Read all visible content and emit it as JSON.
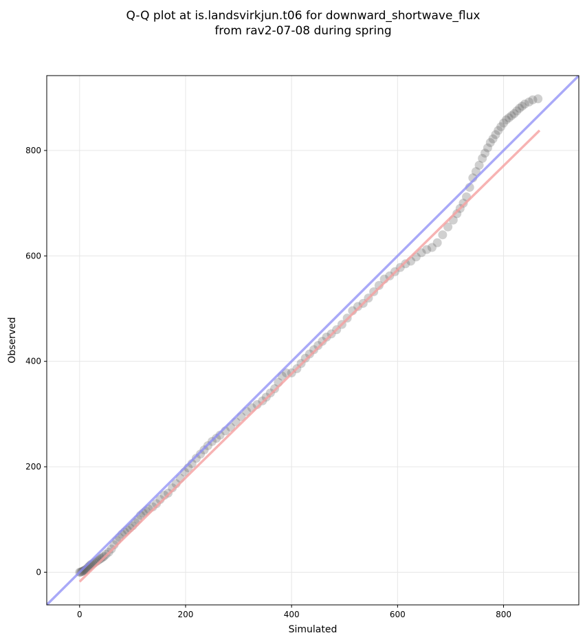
{
  "chart_data": {
    "type": "scatter",
    "title": "Q-Q plot at is.landsvirkjun.t06 for downward_shortwave_flux",
    "subtitle": "from rav2-07-08 during spring",
    "xlabel": "Simulated",
    "ylabel": "Observed",
    "xlim": [
      -62,
      942
    ],
    "ylim": [
      -62,
      942
    ],
    "xticks": [
      0,
      200,
      400,
      600,
      800
    ],
    "yticks": [
      0,
      200,
      400,
      600,
      800
    ],
    "grid": true,
    "point_color": "#555555",
    "identity_line_color": "#8c8cf5",
    "fit_line_color": "#f5a0a0",
    "identity_line": {
      "x": [
        -62,
        942
      ],
      "y": [
        -62,
        942
      ]
    },
    "fit_line": {
      "x": [
        0,
        868
      ],
      "y": [
        -18,
        838
      ]
    },
    "points": {
      "x": [
        0,
        2,
        4,
        6,
        8,
        10,
        12,
        14,
        16,
        18,
        20,
        22,
        25,
        28,
        31,
        34,
        37,
        40,
        43,
        46,
        50,
        55,
        60,
        65,
        70,
        75,
        80,
        85,
        90,
        95,
        100,
        105,
        110,
        115,
        120,
        125,
        130,
        138,
        145,
        152,
        160,
        167,
        175,
        182,
        190,
        198,
        205,
        212,
        220,
        228,
        235,
        242,
        250,
        258,
        265,
        275,
        285,
        295,
        305,
        315,
        325,
        335,
        345,
        352,
        360,
        368,
        375,
        382,
        390,
        400,
        410,
        418,
        426,
        434,
        442,
        450,
        458,
        466,
        475,
        485,
        495,
        505,
        515,
        525,
        535,
        545,
        555,
        565,
        575,
        585,
        595,
        605,
        615,
        625,
        635,
        645,
        655,
        665,
        675,
        685,
        695,
        705,
        712,
        718,
        724,
        730,
        736,
        742,
        748,
        754,
        760,
        765,
        770,
        775,
        780,
        785,
        790,
        795,
        800,
        805,
        810,
        815,
        820,
        825,
        830,
        835,
        840,
        848,
        855,
        865
      ],
      "y": [
        0,
        0,
        1,
        2,
        3,
        4,
        5,
        7,
        9,
        11,
        13,
        15,
        16,
        18,
        20,
        22,
        24,
        26,
        28,
        30,
        34,
        38,
        44,
        52,
        60,
        66,
        72,
        76,
        80,
        84,
        88,
        94,
        100,
        108,
        112,
        116,
        120,
        124,
        130,
        138,
        146,
        150,
        160,
        168,
        178,
        190,
        198,
        206,
        216,
        224,
        232,
        240,
        248,
        254,
        260,
        268,
        275,
        285,
        295,
        305,
        312,
        318,
        325,
        332,
        340,
        348,
        360,
        372,
        378,
        378,
        386,
        396,
        406,
        414,
        422,
        430,
        438,
        446,
        452,
        460,
        470,
        482,
        496,
        504,
        510,
        520,
        532,
        544,
        556,
        562,
        570,
        578,
        585,
        590,
        598,
        606,
        612,
        616,
        625,
        640,
        655,
        668,
        680,
        690,
        700,
        712,
        730,
        748,
        760,
        772,
        785,
        795,
        805,
        815,
        822,
        830,
        838,
        845,
        852,
        858,
        862,
        866,
        870,
        875,
        880,
        884,
        888,
        892,
        896,
        898
      ]
    }
  }
}
